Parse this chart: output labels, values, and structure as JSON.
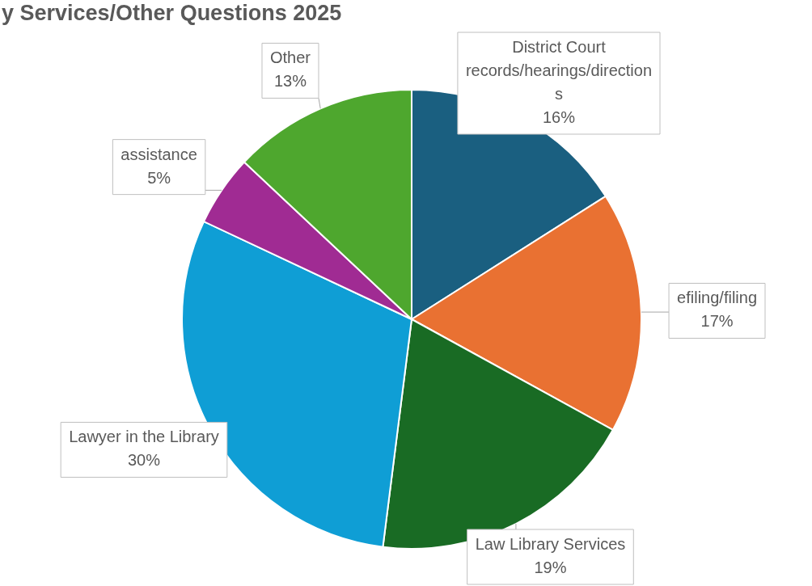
{
  "chart_data": {
    "type": "pie",
    "title": "y Services/Other Questions 2025",
    "categories": [
      "District Court records/hearings/directions",
      "efiling/filing",
      "Law Library Services",
      "Lawyer in the Library",
      "assistance",
      "Other"
    ],
    "values": [
      16,
      17,
      19,
      30,
      5,
      13
    ],
    "value_labels": [
      "16%",
      "17%",
      "19%",
      "30%",
      "5%",
      "13%"
    ],
    "colors": [
      "#1a5f80",
      "#e97132",
      "#196b24",
      "#0f9ed5",
      "#a02b93",
      "#4ea72e"
    ],
    "legend": false
  }
}
